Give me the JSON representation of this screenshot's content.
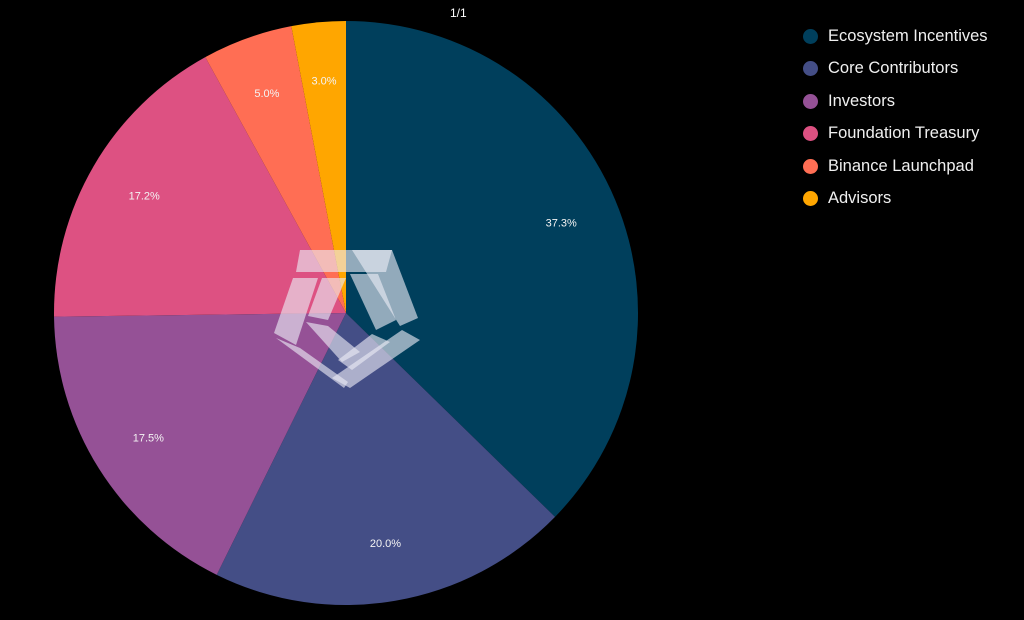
{
  "page_indicator": "1/1",
  "legend": [
    {
      "label": "Ecosystem Incentives",
      "color": "#003f5c"
    },
    {
      "label": "Core Contributors",
      "color": "#444e86"
    },
    {
      "label": "Investors",
      "color": "#955196"
    },
    {
      "label": "Foundation Treasury",
      "color": "#dd5182"
    },
    {
      "label": "Binance Launchpad",
      "color": "#ff6e54"
    },
    {
      "label": "Advisors",
      "color": "#ffa600"
    }
  ],
  "chart_data": {
    "type": "pie",
    "title": "",
    "categories": [
      "Ecosystem Incentives",
      "Core Contributors",
      "Investors",
      "Foundation Treasury",
      "Binance Launchpad",
      "Advisors"
    ],
    "values": [
      37.3,
      20.0,
      17.5,
      17.2,
      5.0,
      3.0
    ],
    "labels": [
      "37.3%",
      "20.0%",
      "17.5%",
      "17.2%",
      "5.0%",
      "3.0%"
    ],
    "colors": [
      "#003f5c",
      "#444e86",
      "#955196",
      "#dd5182",
      "#ff6e54",
      "#ffa600"
    ],
    "start_angle": "12 o'clock, clockwise",
    "legend_position": "right"
  }
}
